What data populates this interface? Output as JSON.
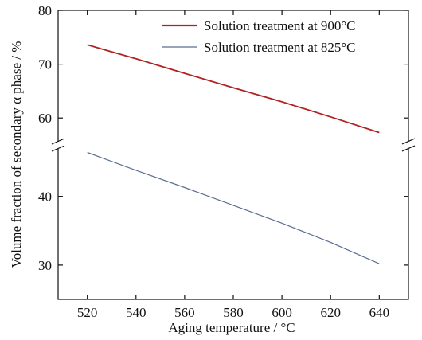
{
  "chart_data": {
    "type": "line",
    "xlabel": "Aging temperature / °C",
    "ylabel": "Volume fraction of secondary α phase / %",
    "xlim": [
      508,
      652
    ],
    "xticks": [
      520,
      540,
      560,
      580,
      600,
      620,
      640
    ],
    "y_axis_break": true,
    "upper_panel": {
      "ylim": [
        55,
        80
      ],
      "yticks": [
        60,
        70,
        80
      ]
    },
    "lower_panel": {
      "ylim": [
        25,
        47.5
      ],
      "yticks": [
        30,
        40
      ]
    },
    "grid": false,
    "legend_position": "top-right",
    "series": [
      {
        "name": "Solution treatment at 900°C",
        "color": "#b22222",
        "panel": "upper",
        "x": [
          520,
          540,
          560,
          580,
          600,
          620,
          640
        ],
        "y": [
          73.6,
          71.0,
          68.3,
          65.6,
          63.0,
          60.2,
          57.3
        ]
      },
      {
        "name": "Solution treatment at 825°C",
        "color": "#5a6f8f",
        "panel": "lower",
        "x": [
          520,
          540,
          560,
          580,
          600,
          620,
          640
        ],
        "y": [
          46.4,
          43.8,
          41.3,
          38.7,
          36.1,
          33.3,
          30.2
        ]
      }
    ]
  }
}
